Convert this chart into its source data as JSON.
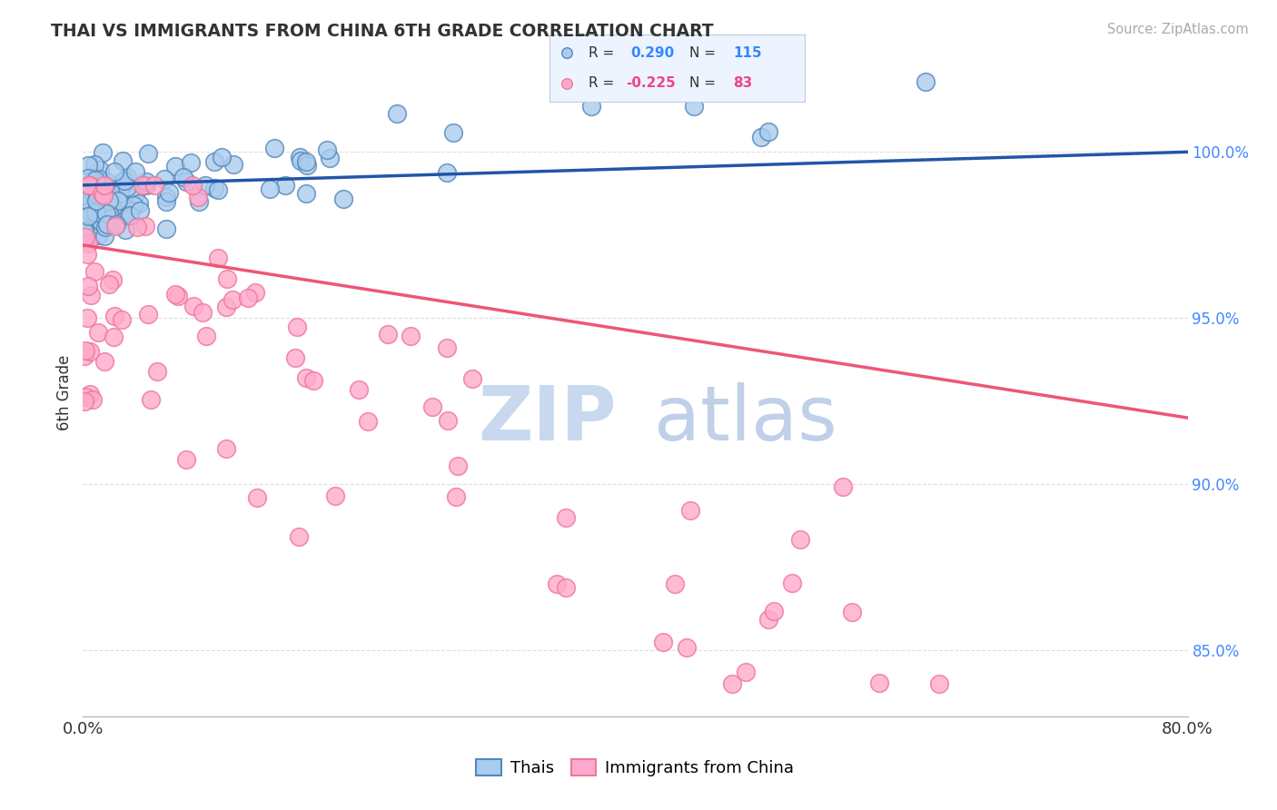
{
  "title": "THAI VS IMMIGRANTS FROM CHINA 6TH GRADE CORRELATION CHART",
  "source_text": "Source: ZipAtlas.com",
  "ylabel": "6th Grade",
  "legend_blue_r": "0.290",
  "legend_blue_n": "115",
  "legend_pink_r": "-0.225",
  "legend_pink_n": "83",
  "blue_face": "#AACCEE",
  "blue_edge": "#5588BB",
  "pink_face": "#FFAACC",
  "pink_edge": "#EE7799",
  "blue_line": "#2255AA",
  "pink_line": "#EE5577",
  "xlim": [
    0.0,
    0.8
  ],
  "ylim": [
    0.83,
    1.025
  ],
  "ytick_vals": [
    0.85,
    0.9,
    0.95,
    1.0
  ],
  "ytick_labels": [
    "85.0%",
    "90.0%",
    "95.0%",
    "100.0%"
  ],
  "xtick_vals": [
    0.0,
    0.8
  ],
  "xtick_labels": [
    "0.0%",
    "80.0%"
  ],
  "background_color": "#FFFFFF",
  "grid_color": "#DDDDDD",
  "watermark_zip_color": "#C8D8EE",
  "watermark_atlas_color": "#C0D0E8"
}
